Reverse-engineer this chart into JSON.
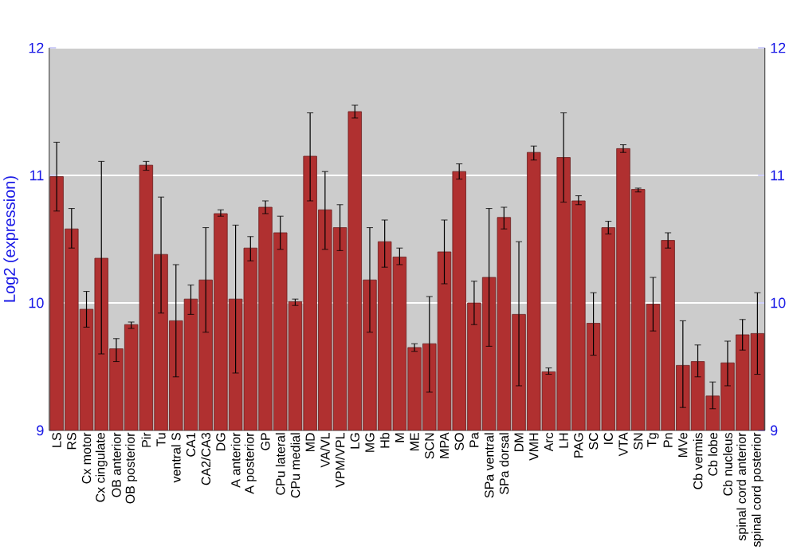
{
  "chart_data": {
    "type": "bar",
    "ylabel": "Log2 (expression)",
    "categories": [
      "LS",
      "RS",
      "Cx motor",
      "Cx cingulate",
      "OB anterior",
      "OB posterior",
      "Pir",
      "Tu",
      "ventral S",
      "CA1",
      "CA2/CA3",
      "DG",
      "A anterior",
      "A posterior",
      "GP",
      "CPu lateral",
      "CPu medial",
      "MD",
      "VA/VL",
      "VPM/VPL",
      "LG",
      "MG",
      "Hb",
      "M",
      "ME",
      "SCN",
      "MPA",
      "SO",
      "Pa",
      "SPa ventral",
      "SPa dorsal",
      "DM",
      "VMH",
      "Arc",
      "LH",
      "PAG",
      "SC",
      "IC",
      "VTA",
      "SN",
      "Tg",
      "Pn",
      "MVe",
      "Cb vermis",
      "Cb lobe",
      "Cb nucleus",
      "spinal cord anterior",
      "spinal cord posterior"
    ],
    "values": [
      10.99,
      10.58,
      9.95,
      10.35,
      9.64,
      9.83,
      11.08,
      10.38,
      9.86,
      10.03,
      10.18,
      10.7,
      10.03,
      10.43,
      10.75,
      10.55,
      10.01,
      11.15,
      10.73,
      10.59,
      11.5,
      10.18,
      10.48,
      10.36,
      9.65,
      9.68,
      10.4,
      11.03,
      10.0,
      10.2,
      10.67,
      9.91,
      11.18,
      9.46,
      11.14,
      10.8,
      9.84,
      10.59,
      11.21,
      10.89,
      9.99,
      10.49,
      9.51,
      9.54,
      9.27,
      9.53,
      9.75,
      9.76
    ],
    "errors": [
      [
        10.72,
        11.26
      ],
      [
        10.43,
        10.74
      ],
      [
        9.81,
        10.09
      ],
      [
        9.6,
        11.11
      ],
      [
        9.54,
        9.72
      ],
      [
        9.8,
        9.85
      ],
      [
        11.04,
        11.11
      ],
      [
        9.92,
        10.83
      ],
      [
        9.42,
        10.3
      ],
      [
        9.91,
        10.14
      ],
      [
        9.77,
        10.59
      ],
      [
        10.68,
        10.73
      ],
      [
        9.45,
        10.61
      ],
      [
        10.33,
        10.52
      ],
      [
        10.7,
        10.8
      ],
      [
        10.42,
        10.68
      ],
      [
        9.98,
        10.03
      ],
      [
        10.8,
        11.49
      ],
      [
        10.42,
        11.03
      ],
      [
        10.41,
        10.77
      ],
      [
        11.45,
        11.55
      ],
      [
        9.77,
        10.59
      ],
      [
        10.28,
        10.65
      ],
      [
        10.3,
        10.43
      ],
      [
        9.62,
        9.68
      ],
      [
        9.3,
        10.05
      ],
      [
        10.15,
        10.65
      ],
      [
        10.97,
        11.09
      ],
      [
        9.83,
        10.17
      ],
      [
        9.66,
        10.74
      ],
      [
        10.58,
        10.75
      ],
      [
        9.35,
        10.48
      ],
      [
        11.12,
        11.23
      ],
      [
        9.44,
        9.49
      ],
      [
        10.79,
        11.49
      ],
      [
        10.77,
        10.84
      ],
      [
        9.59,
        10.08
      ],
      [
        10.54,
        10.64
      ],
      [
        11.18,
        11.24
      ],
      [
        10.87,
        10.9
      ],
      [
        9.78,
        10.2
      ],
      [
        10.43,
        10.55
      ],
      [
        9.18,
        9.86
      ],
      [
        9.42,
        9.67
      ],
      [
        9.17,
        9.38
      ],
      [
        9.35,
        9.7
      ],
      [
        9.63,
        9.87
      ],
      [
        9.44,
        10.08
      ]
    ],
    "color": "#b03030",
    "ylim": [
      9,
      12
    ],
    "yticks": [
      9,
      10,
      11,
      12
    ],
    "y2lim": [
      9,
      12
    ],
    "y2ticks": [
      9,
      10,
      11,
      12
    ],
    "grid": "y"
  }
}
